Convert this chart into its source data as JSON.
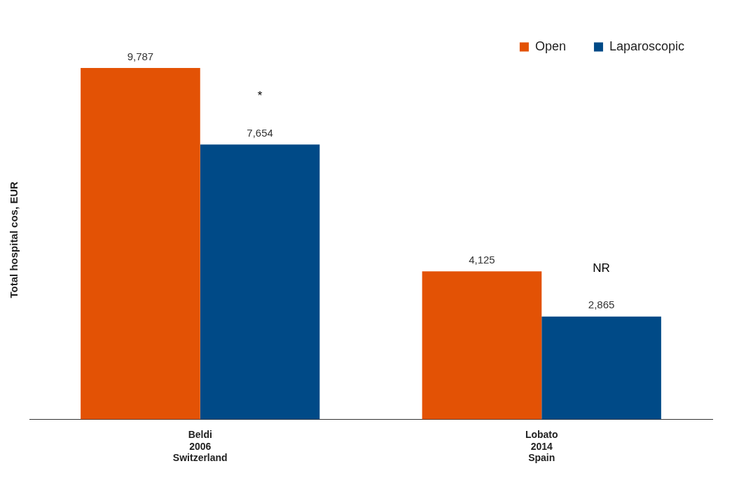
{
  "chart_data": {
    "type": "bar",
    "ylabel": "Total hospital cos, EUR",
    "categories": [
      "Beldi\n2006\nSwitzerland",
      "Lobato\n2014\nSpain"
    ],
    "series": [
      {
        "name": "Open",
        "color": "#e35205",
        "values": [
          9787,
          4125
        ],
        "value_labels": [
          "9,787",
          "4,125"
        ]
      },
      {
        "name": "Laparoscopic",
        "color": "#004a87",
        "values": [
          7654,
          2865
        ],
        "value_labels": [
          "7,654",
          "2,865"
        ]
      }
    ],
    "legend": "top right",
    "grid": false,
    "annotations": [
      "*",
      "NR"
    ]
  }
}
